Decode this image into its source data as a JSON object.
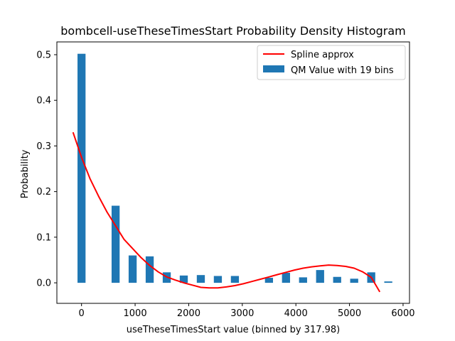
{
  "chart_data": {
    "type": "bar",
    "title": "bombcell-useTheseTimesStart Probability Density Histogram",
    "xlabel": "useTheseTimesStart value (binned by 317.98)",
    "ylabel": "Probability",
    "xlim": [
      -460,
      6120
    ],
    "ylim": [
      -0.045,
      0.528
    ],
    "xticks": [
      0,
      1000,
      2000,
      3000,
      4000,
      5000,
      6000
    ],
    "xtick_labels": [
      "0",
      "1000",
      "2000",
      "3000",
      "4000",
      "5000",
      "6000"
    ],
    "yticks": [
      0.0,
      0.1,
      0.2,
      0.3,
      0.4,
      0.5
    ],
    "ytick_labels": [
      "0.0",
      "0.1",
      "0.2",
      "0.3",
      "0.4",
      "0.5"
    ],
    "grid": false,
    "legend_position": "top-right",
    "bar_color": "#1f77b4",
    "line_color": "#ff0000",
    "bar_width": 150,
    "bars": {
      "name": "QM Value with 19 bins",
      "x": [
        0,
        318,
        636,
        954,
        1272,
        1590,
        1908,
        2226,
        2544,
        2862,
        3180,
        3498,
        3816,
        4134,
        4452,
        4770,
        5088,
        5406,
        5724
      ],
      "values": [
        0.502,
        0.0,
        0.169,
        0.06,
        0.058,
        0.023,
        0.016,
        0.017,
        0.015,
        0.015,
        0.0,
        0.011,
        0.022,
        0.012,
        0.028,
        0.013,
        0.009,
        0.023,
        0.003
      ]
    },
    "line": {
      "name": "Spline approx",
      "x": [
        -159,
        0,
        159,
        318,
        477,
        636,
        795,
        954,
        1113,
        1272,
        1431,
        1590,
        1749,
        1908,
        2067,
        2226,
        2385,
        2544,
        2703,
        2862,
        3021,
        3180,
        3339,
        3498,
        3657,
        3816,
        3975,
        4134,
        4293,
        4452,
        4611,
        4770,
        4929,
        5088,
        5247,
        5406,
        5565
      ],
      "values": [
        0.33,
        0.275,
        0.228,
        0.19,
        0.155,
        0.125,
        0.095,
        0.075,
        0.055,
        0.038,
        0.024,
        0.013,
        0.006,
        0.0,
        -0.005,
        -0.01,
        -0.011,
        -0.011,
        -0.009,
        -0.006,
        -0.002,
        0.003,
        0.008,
        0.013,
        0.018,
        0.023,
        0.028,
        0.032,
        0.035,
        0.037,
        0.039,
        0.038,
        0.036,
        0.032,
        0.024,
        0.012,
        -0.02
      ]
    }
  }
}
